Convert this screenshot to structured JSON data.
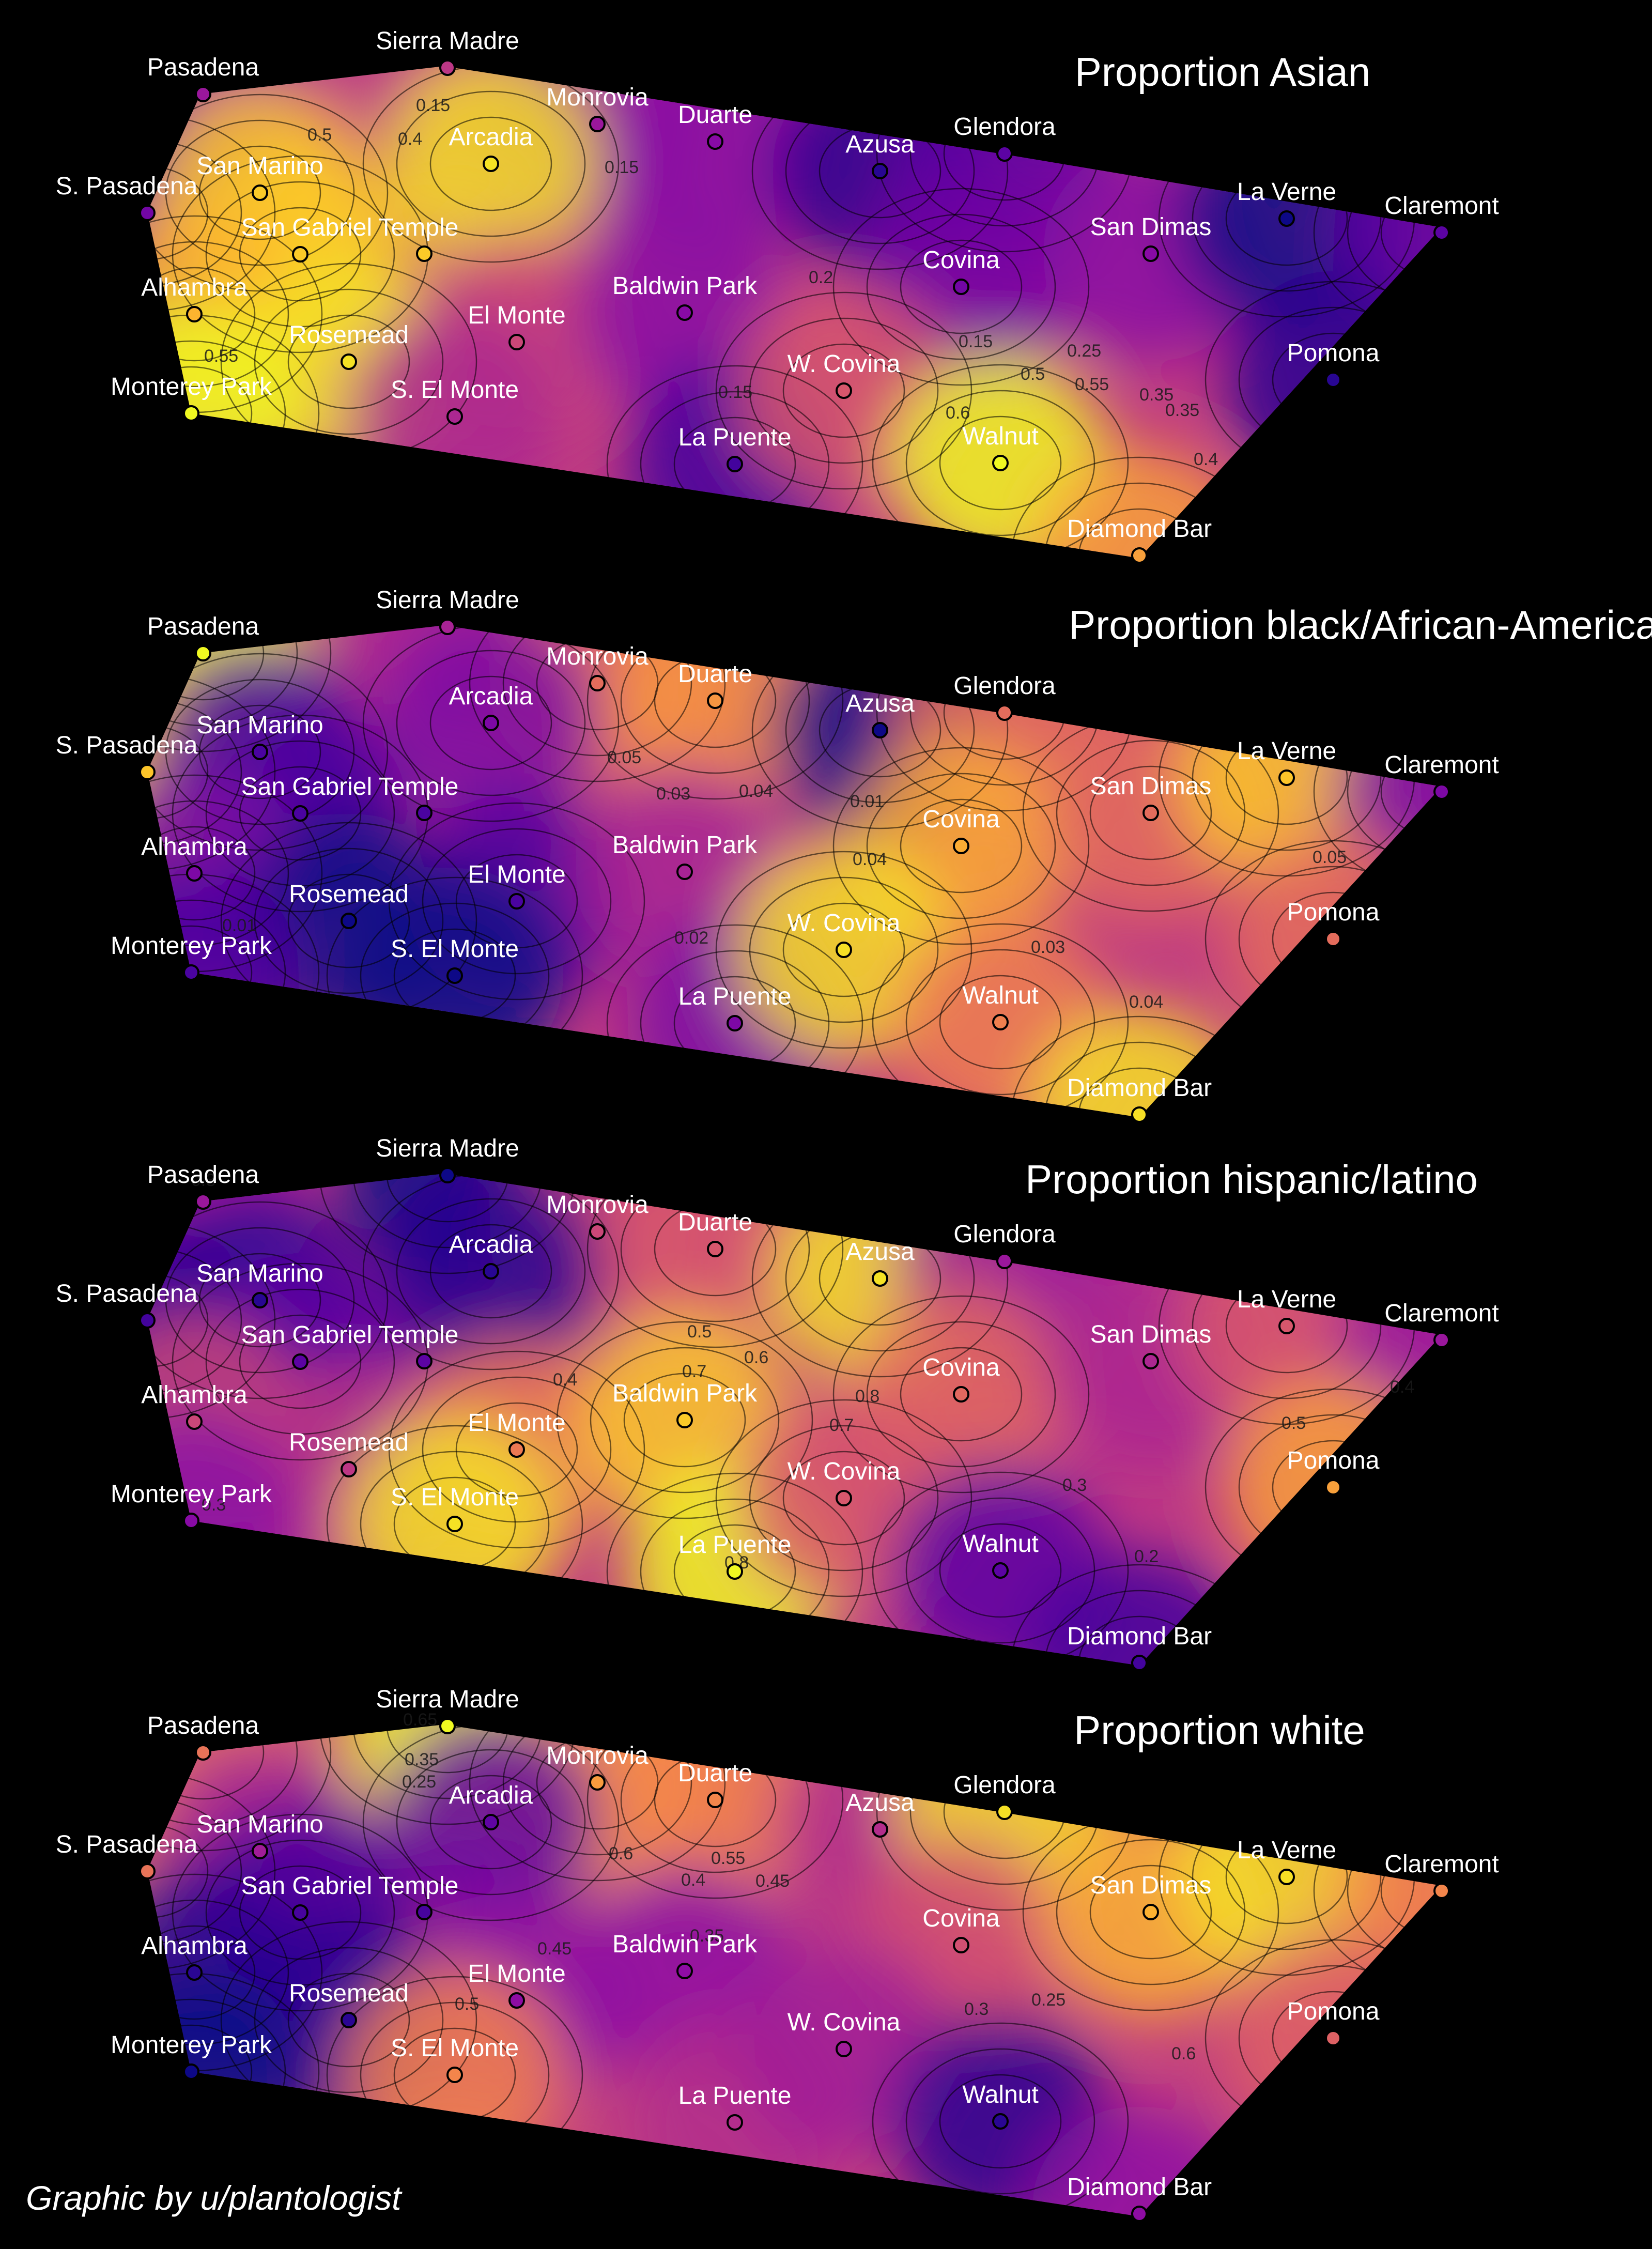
{
  "credit": "Graphic by u/plantologist",
  "colors": {
    "background": "#000000",
    "palette": "plasma",
    "scale": [
      "#0d0887",
      "#5302a3",
      "#8b0aa5",
      "#b83289",
      "#db5c68",
      "#f48849",
      "#febd2a",
      "#f0f921"
    ]
  },
  "city_names": [
    "Pasadena",
    "Sierra Madre",
    "Monrovia",
    "Duarte",
    "Arcadia",
    "S. Pasadena",
    "San Marino",
    "San Gabriel Temple",
    "Alhambra",
    "Rosemead",
    "El Monte",
    "Monterey Park",
    "S. El Monte",
    "Baldwin Park",
    "La Puente",
    "Azusa",
    "Glendora",
    "Covina",
    "W. Covina",
    "Walnut",
    "Diamond Bar",
    "San Dimas",
    "La Verne",
    "Claremont",
    "Pomona"
  ],
  "panels": [
    {
      "title": "Proportion Asian",
      "values": [
        0.35,
        0.45,
        0.35,
        0.3,
        0.9,
        0.25,
        0.85,
        0.85,
        0.8,
        0.9,
        0.5,
        0.95,
        0.4,
        0.3,
        0.15,
        0.1,
        0.2,
        0.25,
        0.55,
        0.95,
        0.75,
        0.3,
        0.05,
        0.2,
        0.1
      ],
      "contour_labels": [
        "0.15",
        "0.5",
        "0.4",
        "0.15",
        "0.55",
        "0.2",
        "0.15",
        "0.15",
        "0.25",
        "0.35",
        "0.5",
        "0.55",
        "0.35",
        "0.6",
        "0.4"
      ]
    },
    {
      "title": "Proportion black/African-American",
      "values": [
        0.09,
        0.04,
        0.06,
        0.07,
        0.03,
        0.08,
        0.02,
        0.02,
        0.03,
        0.01,
        0.02,
        0.02,
        0.01,
        0.04,
        0.03,
        0.01,
        0.06,
        0.075,
        0.085,
        0.065,
        0.085,
        0.06,
        0.08,
        0.03,
        0.06
      ],
      "contour_labels": [
        "0.05",
        "0.03",
        "0.04",
        "0.01",
        "0.04",
        "0.02",
        "0.01",
        "0.03",
        "0.04",
        "0.05"
      ]
    },
    {
      "title": "Proportion hispanic/latino",
      "values": [
        0.35,
        0.05,
        0.5,
        0.55,
        0.1,
        0.15,
        0.1,
        0.2,
        0.5,
        0.45,
        0.65,
        0.3,
        0.9,
        0.85,
        0.95,
        0.9,
        0.35,
        0.6,
        0.55,
        0.2,
        0.15,
        0.4,
        0.55,
        0.35,
        0.75
      ],
      "contour_labels": [
        "0.3",
        "0.5",
        "0.6",
        "0.4",
        "0.7",
        "0.8",
        "0.7",
        "0.8",
        "0.3",
        "0.2",
        "0.4",
        "0.5",
        "0.3"
      ]
    },
    {
      "title": "Proportion white",
      "values": [
        0.6,
        0.9,
        0.7,
        0.65,
        0.2,
        0.6,
        0.35,
        0.15,
        0.1,
        0.1,
        0.3,
        0.05,
        0.65,
        0.3,
        0.4,
        0.4,
        0.85,
        0.5,
        0.35,
        0.1,
        0.3,
        0.75,
        0.85,
        0.65,
        0.55
      ],
      "contour_labels": [
        "0.65",
        "0.35",
        "0.25",
        "0.6",
        "0.55",
        "0.4",
        "0.45",
        "0.35",
        "0.45",
        "0.5",
        "0.3",
        "0.25",
        "0.6"
      ]
    }
  ]
}
